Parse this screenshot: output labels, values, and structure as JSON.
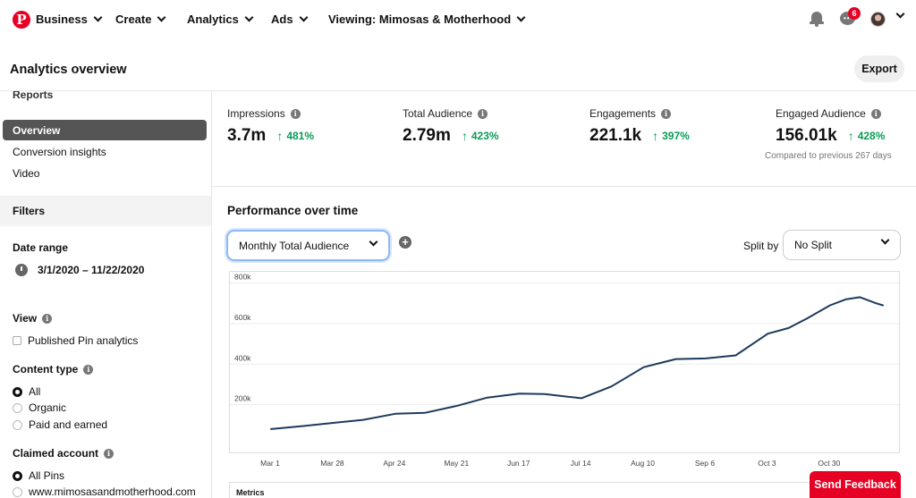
{
  "nav": {
    "logo_letter": "P",
    "items": [
      {
        "label": "Business"
      },
      {
        "label": "Create"
      },
      {
        "label": "Analytics"
      },
      {
        "label": "Ads"
      },
      {
        "label": "Viewing: Mimosas & Motherhood"
      }
    ],
    "messages_badge": "6"
  },
  "header": {
    "title": "Analytics overview",
    "export_label": "Export"
  },
  "sidebar": {
    "reports_heading": "Reports",
    "report_items": [
      {
        "label": "Overview",
        "active": true
      },
      {
        "label": "Conversion insights",
        "active": false
      },
      {
        "label": "Video",
        "active": false
      }
    ],
    "filters_heading": "Filters",
    "date_range_label": "Date range",
    "date_range_value": "3/1/2020 – 11/22/2020",
    "view_label": "View",
    "published_pin_label": "Published Pin analytics",
    "content_type_label": "Content type",
    "content_type_options": [
      {
        "label": "All",
        "selected": true
      },
      {
        "label": "Organic",
        "selected": false
      },
      {
        "label": "Paid and earned",
        "selected": false
      }
    ],
    "claimed_account_label": "Claimed account",
    "claimed_account_options": [
      {
        "label": "All Pins",
        "selected": true
      },
      {
        "label": "www.mimosasandmotherhood.com",
        "selected": false
      }
    ]
  },
  "stats": [
    {
      "label": "Impressions",
      "value": "3.7m",
      "change": "481%"
    },
    {
      "label": "Total Audience",
      "value": "2.79m",
      "change": "423%"
    },
    {
      "label": "Engagements",
      "value": "221.1k",
      "change": "397%"
    },
    {
      "label": "Engaged Audience",
      "value": "156.01k",
      "change": "428%"
    }
  ],
  "compare_text": "Compared to previous 267 days",
  "performance": {
    "title": "Performance over time",
    "metric_select": "Monthly Total Audience",
    "split_label": "Split by",
    "split_select": "No Split"
  },
  "chart_data": {
    "type": "line",
    "series": [
      {
        "values": [
          {
            "x": "2020-03-01",
            "y": 80000
          },
          {
            "x": "2020-03-15",
            "y": 95000
          },
          {
            "x": "2020-03-28",
            "y": 110000
          },
          {
            "x": "2020-04-10",
            "y": 125000
          },
          {
            "x": "2020-04-24",
            "y": 155000
          },
          {
            "x": "2020-05-07",
            "y": 160000
          },
          {
            "x": "2020-05-21",
            "y": 195000
          },
          {
            "x": "2020-06-03",
            "y": 235000
          },
          {
            "x": "2020-06-17",
            "y": 255000
          },
          {
            "x": "2020-06-28",
            "y": 252000
          },
          {
            "x": "2020-07-14",
            "y": 232000
          },
          {
            "x": "2020-07-27",
            "y": 290000
          },
          {
            "x": "2020-08-10",
            "y": 385000
          },
          {
            "x": "2020-08-17",
            "y": 405000
          },
          {
            "x": "2020-08-24",
            "y": 425000
          },
          {
            "x": "2020-09-06",
            "y": 428000
          },
          {
            "x": "2020-09-19",
            "y": 443000
          },
          {
            "x": "2020-10-03",
            "y": 550000
          },
          {
            "x": "2020-10-12",
            "y": 578000
          },
          {
            "x": "2020-10-20",
            "y": 625000
          },
          {
            "x": "2020-10-30",
            "y": 690000
          },
          {
            "x": "2020-11-06",
            "y": 720000
          },
          {
            "x": "2020-11-12",
            "y": 730000
          },
          {
            "x": "2020-11-19",
            "y": 700000
          },
          {
            "x": "2020-11-22",
            "y": 690000
          }
        ]
      }
    ],
    "x_ticks": [
      "Mar 1",
      "Mar 28",
      "Apr 24",
      "May 21",
      "Jun 17",
      "Jul 14",
      "Aug 10",
      "Sep 6",
      "Oct 3",
      "Oct 30"
    ],
    "x_tick_dates": [
      "2020-03-01",
      "2020-03-28",
      "2020-04-24",
      "2020-05-21",
      "2020-06-17",
      "2020-07-14",
      "2020-08-10",
      "2020-09-06",
      "2020-10-03",
      "2020-10-30"
    ],
    "y_ticks": [
      "800k",
      "600k",
      "400k",
      "200k"
    ],
    "y_tick_values": [
      800000,
      600000,
      400000,
      200000
    ],
    "xlim": [
      "2020-03-01",
      "2020-11-22"
    ],
    "ylim": [
      0,
      820000
    ],
    "grid": true,
    "line_color": "#1d3a5c"
  },
  "metrics_label": "Metrics",
  "feedback_label": "Send Feedback",
  "colors": {
    "brand": "#e60023",
    "positive": "#0a9b54"
  }
}
